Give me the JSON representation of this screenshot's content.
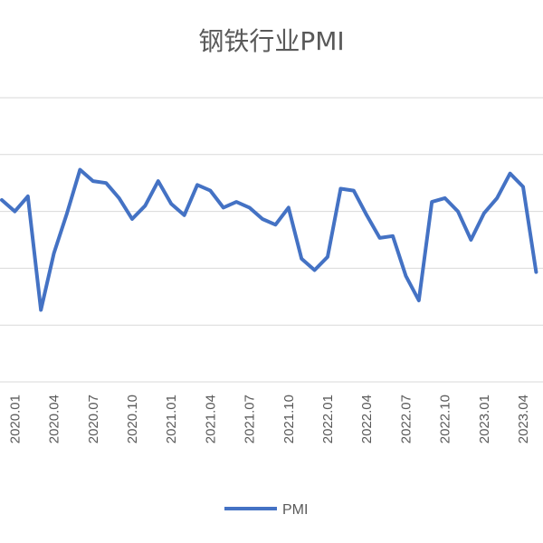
{
  "chart_data": {
    "type": "line",
    "title": "钢铁行业PMI",
    "xlabel": "",
    "ylabel": "",
    "ylim": [
      40,
      55
    ],
    "grid": true,
    "legend_position": "bottom",
    "x_tick_labels": [
      "2020.01",
      "2020.04",
      "2020.07",
      "2020.10",
      "2021.01",
      "2021.04",
      "2021.07",
      "2021.10",
      "2022.01",
      "2022.04",
      "2022.07",
      "2022.10",
      "2023.01",
      "2023.04"
    ],
    "series": [
      {
        "name": "PMI",
        "color": "#4472c4",
        "x": [
          "2019.12",
          "2020.01",
          "2020.02",
          "2020.03",
          "2020.04",
          "2020.05",
          "2020.06",
          "2020.07",
          "2020.08",
          "2020.09",
          "2020.10",
          "2020.11",
          "2020.12",
          "2021.01",
          "2021.02",
          "2021.03",
          "2021.04",
          "2021.05",
          "2021.06",
          "2021.07",
          "2021.08",
          "2021.09",
          "2021.10",
          "2021.11",
          "2021.12",
          "2022.01",
          "2022.02",
          "2022.03",
          "2022.04",
          "2022.05",
          "2022.06",
          "2022.07",
          "2022.08",
          "2022.09",
          "2022.10",
          "2022.11",
          "2022.12",
          "2023.01",
          "2023.02",
          "2023.03",
          "2023.04",
          "2023.05"
        ],
        "values": [
          49.6,
          49.0,
          49.8,
          43.8,
          46.8,
          48.9,
          51.2,
          50.6,
          50.5,
          49.7,
          48.6,
          49.3,
          50.6,
          49.4,
          48.8,
          50.4,
          50.1,
          49.2,
          49.5,
          49.2,
          48.6,
          48.3,
          49.2,
          46.5,
          45.9,
          46.6,
          50.2,
          50.1,
          48.8,
          47.6,
          47.7,
          45.6,
          44.3,
          49.5,
          49.7,
          49.0,
          47.5,
          48.9,
          49.7,
          51.0,
          50.3,
          45.8
        ]
      }
    ]
  }
}
